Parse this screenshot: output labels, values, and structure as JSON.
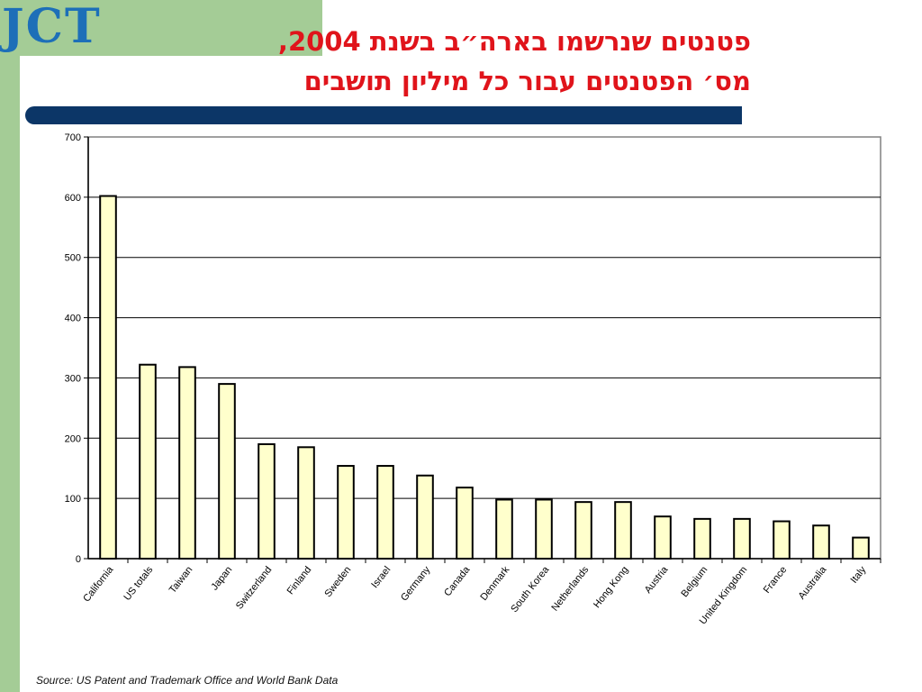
{
  "logo": {
    "text": "JCT"
  },
  "title_lines": [
    "פטנטים שנרשמו בארה״ב בשנת 2004,",
    "מס׳ הפטנטים עבור כל מיליון תושבים"
  ],
  "source": "Source: US Patent and Trademark Office and World Bank Data",
  "colors": {
    "bar_fill": "#ffffcc",
    "bar_stroke": "#000000",
    "title": "#e0141b",
    "band": "#a4cc96",
    "dark_bar": "#0c3667"
  },
  "chart_data": {
    "type": "bar",
    "categories": [
      "California",
      "US totals",
      "Taiwan",
      "Japan",
      "Switzerland",
      "Finland",
      "Sweden",
      "Israel",
      "Germany",
      "Canada",
      "Denmark",
      "South Korea",
      "Netherlands",
      "Hong Kong",
      "Austria",
      "Belgium",
      "United Kingdom",
      "France",
      "Australia",
      "Italy"
    ],
    "values": [
      602,
      322,
      318,
      290,
      190,
      185,
      154,
      154,
      138,
      118,
      98,
      98,
      94,
      94,
      70,
      66,
      66,
      62,
      55,
      35
    ],
    "title": "",
    "xlabel": "",
    "ylabel": "",
    "ylim": [
      0,
      700
    ],
    "yticks": [
      0,
      100,
      200,
      300,
      400,
      500,
      600,
      700
    ],
    "grid": true,
    "legend": "none"
  }
}
